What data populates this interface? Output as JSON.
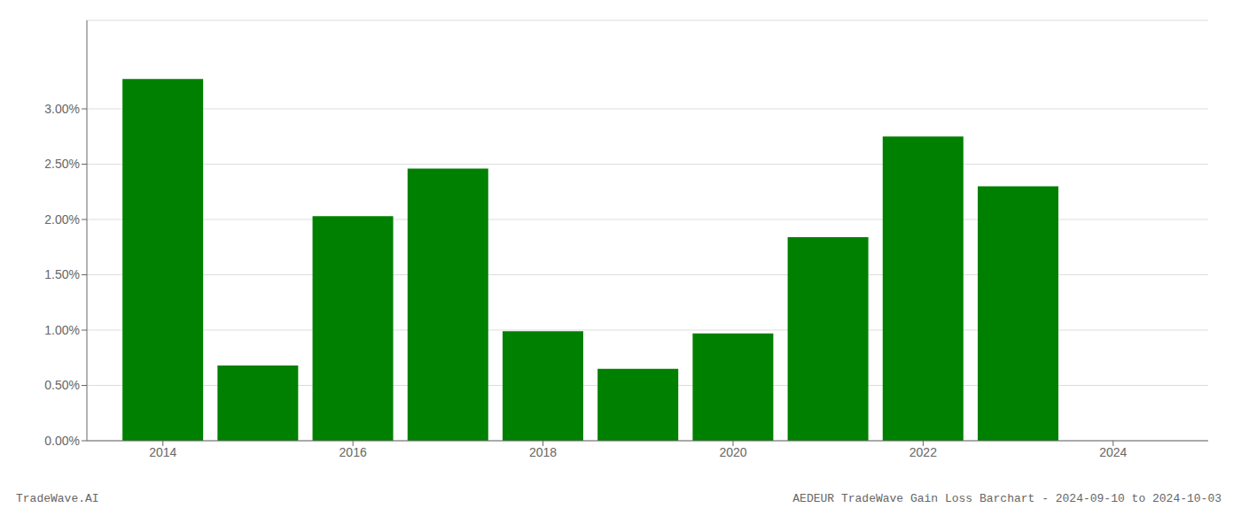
{
  "chart_data": {
    "type": "bar",
    "x": [
      2014,
      2015,
      2016,
      2017,
      2018,
      2019,
      2020,
      2021,
      2022,
      2023
    ],
    "values": [
      0.0327,
      0.0068,
      0.0203,
      0.0246,
      0.0099,
      0.0065,
      0.0097,
      0.0184,
      0.0275,
      0.023
    ],
    "color": "#008000",
    "xlim": [
      2013.2,
      2025.0
    ],
    "xticks": [
      2014,
      2016,
      2018,
      2020,
      2022,
      2024
    ],
    "ylim": [
      0,
      0.038
    ],
    "yticks": [
      {
        "value": 0.0,
        "label": "0.00%"
      },
      {
        "value": 0.005,
        "label": "0.50%"
      },
      {
        "value": 0.01,
        "label": "1.00%"
      },
      {
        "value": 0.015,
        "label": "1.50%"
      },
      {
        "value": 0.02,
        "label": "2.00%"
      },
      {
        "value": 0.025,
        "label": "2.50%"
      },
      {
        "value": 0.03,
        "label": "3.00%"
      }
    ],
    "grid": "y",
    "annotations": [
      "TradeWave.AI",
      "AEDEUR TradeWave Gain Loss Barchart - 2024-09-10 to 2024-10-03"
    ]
  }
}
